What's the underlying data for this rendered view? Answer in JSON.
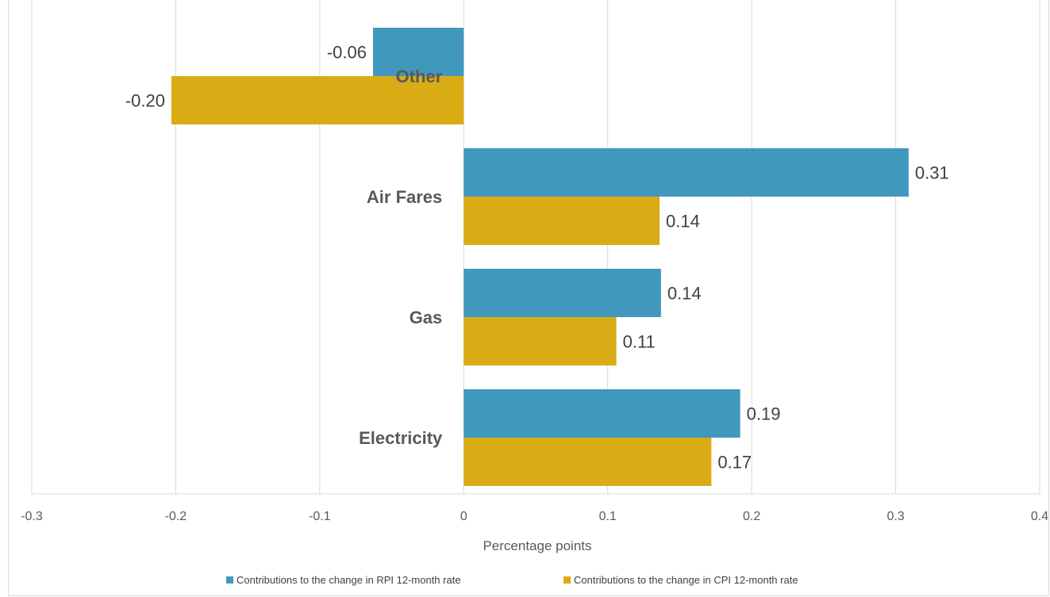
{
  "chart_data": {
    "type": "bar",
    "orientation": "horizontal",
    "categories": [
      "Other",
      "Air Fares",
      "Gas",
      "Electricity"
    ],
    "series": [
      {
        "name": "Contributions to the change in RPI 12-month rate",
        "color": "#4198BD",
        "values": [
          -0.063,
          0.309,
          0.137,
          0.192
        ],
        "labels": [
          "-0.06",
          "0.31",
          "0.14",
          "0.19"
        ]
      },
      {
        "name": "Contributions to the change in CPI 12-month rate",
        "color": "#D9AC16",
        "values": [
          -0.203,
          0.136,
          0.106,
          0.172
        ],
        "labels": [
          "-0.20",
          "0.14",
          "0.11",
          "0.17"
        ]
      }
    ],
    "xlim": [
      -0.3,
      0.4
    ],
    "xticks": [
      -0.3,
      -0.2,
      -0.1,
      0,
      0.1,
      0.2,
      0.3,
      0.4
    ],
    "xtick_labels": [
      "-0.3",
      "-0.2",
      "-0.1",
      "0",
      "0.1",
      "0.2",
      "0.3",
      "0.4"
    ],
    "xlabel": "Percentage points",
    "grid": true,
    "legend_position": "bottom"
  }
}
